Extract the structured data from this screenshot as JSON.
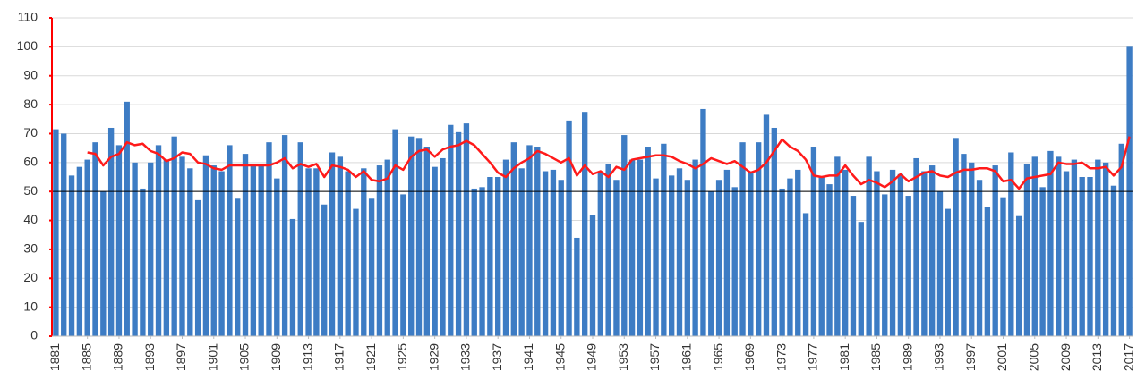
{
  "chart_data": {
    "type": "bar",
    "x": [
      1881,
      1882,
      1883,
      1884,
      1885,
      1886,
      1887,
      1888,
      1889,
      1890,
      1891,
      1892,
      1893,
      1894,
      1895,
      1896,
      1897,
      1898,
      1899,
      1900,
      1901,
      1902,
      1903,
      1904,
      1905,
      1906,
      1907,
      1908,
      1909,
      1910,
      1911,
      1912,
      1913,
      1914,
      1915,
      1916,
      1917,
      1918,
      1919,
      1920,
      1921,
      1922,
      1923,
      1924,
      1925,
      1926,
      1927,
      1928,
      1929,
      1930,
      1931,
      1932,
      1933,
      1934,
      1935,
      1936,
      1937,
      1938,
      1939,
      1940,
      1941,
      1942,
      1943,
      1944,
      1945,
      1946,
      1947,
      1948,
      1949,
      1950,
      1951,
      1952,
      1953,
      1954,
      1955,
      1956,
      1957,
      1958,
      1959,
      1960,
      1961,
      1962,
      1963,
      1964,
      1965,
      1966,
      1967,
      1968,
      1969,
      1970,
      1971,
      1972,
      1973,
      1974,
      1975,
      1976,
      1977,
      1978,
      1979,
      1980,
      1981,
      1982,
      1983,
      1984,
      1985,
      1986,
      1987,
      1988,
      1989,
      1990,
      1991,
      1992,
      1993,
      1994,
      1995,
      1996,
      1997,
      1998,
      1999,
      2000,
      2001,
      2002,
      2003,
      2004,
      2005,
      2006,
      2007,
      2008,
      2009,
      2010,
      2011,
      2012,
      2013,
      2014,
      2015,
      2016,
      2017
    ],
    "xlim": [
      1880.5,
      2017.5
    ],
    "xticks": [
      1881,
      1885,
      1889,
      1893,
      1897,
      1901,
      1905,
      1909,
      1913,
      1917,
      1921,
      1925,
      1929,
      1933,
      1937,
      1941,
      1945,
      1949,
      1953,
      1957,
      1961,
      1965,
      1969,
      1973,
      1977,
      1981,
      1985,
      1989,
      1993,
      1997,
      2001,
      2005,
      2009,
      2013,
      2017
    ],
    "series": [
      {
        "type": "bar",
        "color": "#3d7cc4",
        "values": [
          71.5,
          70,
          55.5,
          58.5,
          61,
          67,
          50,
          72,
          66,
          81,
          60,
          51,
          60,
          66,
          61,
          69,
          62,
          58,
          47,
          62.5,
          59,
          57,
          66,
          47.5,
          63,
          59,
          59,
          67,
          54.5,
          69.5,
          40.5,
          67,
          58,
          58,
          45.5,
          63.5,
          62,
          57,
          44,
          58,
          47.5,
          59,
          61,
          71.5,
          49,
          69,
          68.5,
          65.5,
          58.5,
          61.5,
          73,
          70.5,
          73.5,
          51,
          51.5,
          55,
          55,
          61,
          67,
          58,
          66,
          65.5,
          57,
          57.5,
          54,
          74.5,
          34,
          77.5,
          42,
          57,
          59.5,
          54,
          69.5,
          61,
          61,
          65.5,
          54.5,
          66.5,
          55.5,
          58,
          54,
          61,
          78.5,
          50,
          54,
          57.5,
          51.5,
          67,
          57,
          67,
          76.5,
          72,
          51,
          54.5,
          57.5,
          42.5,
          65.5,
          55,
          52.5,
          62,
          57.5,
          48.5,
          39.5,
          62,
          57,
          49,
          57.5,
          56,
          48.5,
          61.5,
          57,
          59,
          50,
          44,
          68.5,
          63,
          60,
          54,
          44.5,
          59,
          48,
          63.5,
          41.5,
          59.5,
          62,
          51.5,
          64,
          62,
          57,
          61,
          55,
          55,
          61,
          60,
          52,
          66.5,
          100
        ]
      },
      {
        "type": "line",
        "color": "#ff1a1a",
        "values": [
          null,
          null,
          null,
          null,
          63.5,
          63,
          59,
          62,
          63,
          67,
          66,
          66.5,
          64,
          63,
          60.5,
          61.5,
          63.5,
          63,
          60,
          59.5,
          58,
          57.5,
          59,
          59,
          59,
          59,
          59,
          59,
          60,
          61.5,
          58,
          59.5,
          58.5,
          59.5,
          55,
          59,
          58.5,
          57.5,
          55,
          57,
          54,
          53.5,
          54.5,
          59,
          57.5,
          62,
          64,
          64.5,
          62,
          64.5,
          65.5,
          66,
          67.5,
          66,
          63,
          60,
          56.5,
          55,
          58,
          60,
          61.5,
          64,
          63,
          61.5,
          60,
          61.5,
          55.5,
          59,
          56,
          57,
          55,
          58.5,
          57.5,
          61,
          61.5,
          62,
          62.5,
          62.5,
          62,
          60.5,
          59.5,
          58,
          59.5,
          61.5,
          60.5,
          59.5,
          60.5,
          58.5,
          56.5,
          57.5,
          60,
          64,
          68,
          65.5,
          64,
          61,
          55.5,
          55,
          55.5,
          55.5,
          59,
          55.5,
          52.5,
          54,
          53,
          51.5,
          53.5,
          56,
          53.5,
          55,
          56.5,
          57,
          55.5,
          55,
          56.5,
          57.5,
          57.5,
          58,
          58,
          57,
          53.5,
          54,
          51,
          54.5,
          55,
          55.5,
          56,
          60,
          59.5,
          59.5,
          60,
          58,
          58,
          58.5,
          55.5,
          58.5,
          69
        ]
      }
    ],
    "reference_line": 50,
    "ylim": [
      0,
      110
    ],
    "yticks": [
      0,
      10,
      20,
      30,
      40,
      50,
      60,
      70,
      80,
      90,
      100,
      110
    ],
    "grid": true,
    "axis_color": "#ff0000"
  }
}
